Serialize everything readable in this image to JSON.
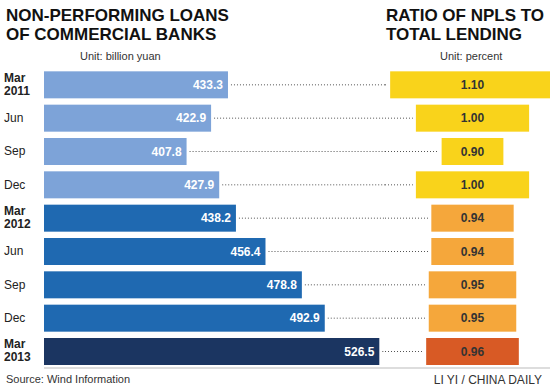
{
  "chart_data": [
    {
      "type": "bar",
      "title": "NON-PERFORMING LOANS OF COMMERCIAL BANKS",
      "subtitle": "Unit: billion yuan",
      "orientation": "horizontal",
      "categories": [
        "Mar 2011",
        "Jun",
        "Sep",
        "Dec",
        "Mar 2012",
        "Jun",
        "Sep",
        "Dec",
        "Mar 2013"
      ],
      "values": [
        433.3,
        422.9,
        407.8,
        427.9,
        438.2,
        456.4,
        478.8,
        492.9,
        526.5
      ],
      "colors": [
        "#7da3d8",
        "#7da3d8",
        "#7da3d8",
        "#7da3d8",
        "#1f69b1",
        "#1f69b1",
        "#1f69b1",
        "#1f69b1",
        "#1b3561"
      ],
      "xlim": [
        320,
        530
      ],
      "data_labels": true,
      "tick_labels": "y"
    },
    {
      "type": "bar",
      "title": "RATIO OF NPLS TO TOTAL LENDING",
      "subtitle": "Unit: percent",
      "orientation": "horizontal",
      "categories": [
        "Mar 2011",
        "Jun",
        "Sep",
        "Dec",
        "Mar 2012",
        "Jun",
        "Sep",
        "Dec",
        "Mar 2013"
      ],
      "values": [
        1.1,
        1.0,
        0.9,
        1.0,
        0.94,
        0.94,
        0.95,
        0.95,
        0.96
      ],
      "value_labels": [
        "1.10",
        "1.00",
        "0.90",
        "1.00",
        "0.94",
        "0.94",
        "0.95",
        "0.95",
        "0.96"
      ],
      "colors": [
        "#f9d31b",
        "#f9d31b",
        "#f9d31b",
        "#f9d31b",
        "#f5a73b",
        "#f5a73b",
        "#f5a73b",
        "#f5a73b",
        "#d85a25"
      ],
      "xlim": [
        0.78,
        1.12
      ],
      "data_labels": true,
      "tick_labels": false
    }
  ],
  "annotations": [
    "Source: Wind Information",
    "LI YI / CHINA DAILY"
  ]
}
